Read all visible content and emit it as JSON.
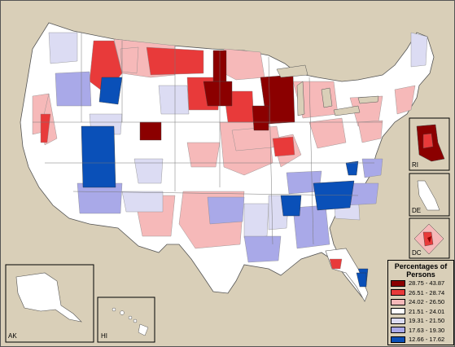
{
  "legend": {
    "title_line1": "Percentages of",
    "title_line2": "Persons",
    "items": [
      {
        "label": "28.75 - 43.87",
        "color": "#8b0000"
      },
      {
        "label": "26.51 - 28.74",
        "color": "#e83a3a"
      },
      {
        "label": "24.02 - 26.50",
        "color": "#f6b9b9"
      },
      {
        "label": "21.51 - 24.01",
        "color": "#ffffff"
      },
      {
        "label": "19.31 - 21.50",
        "color": "#dcdcf3"
      },
      {
        "label": "17.63 - 19.30",
        "color": "#a9a9e8"
      },
      {
        "label": "12.66 - 17.62",
        "color": "#0a50b8"
      }
    ]
  },
  "insets": {
    "ri": "RI",
    "de": "DE",
    "dc": "DC",
    "ak": "AK",
    "hi": "HI"
  }
}
